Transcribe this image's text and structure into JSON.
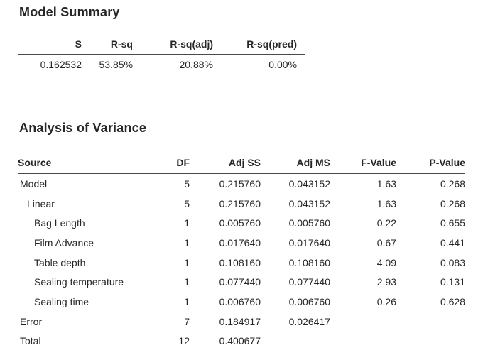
{
  "colors": {
    "heading_blue": "#1B6EC2",
    "body_text": "#262626",
    "rule": "#4a4a4a",
    "background": "#ffffff"
  },
  "model_summary": {
    "title": "Model Summary",
    "columns": [
      "S",
      "R-sq",
      "R-sq(adj)",
      "R-sq(pred)"
    ],
    "values": [
      "0.162532",
      "53.85%",
      "20.88%",
      "0.00%"
    ]
  },
  "anova": {
    "title": "Analysis of Variance",
    "columns": [
      "Source",
      "DF",
      "Adj SS",
      "Adj MS",
      "F-Value",
      "P-Value"
    ],
    "rows": [
      {
        "source": "Model",
        "indent": 0,
        "df": "5",
        "adj_ss": "0.215760",
        "adj_ms": "0.043152",
        "f_value": "1.63",
        "p_value": "0.268"
      },
      {
        "source": "Linear",
        "indent": 1,
        "df": "5",
        "adj_ss": "0.215760",
        "adj_ms": "0.043152",
        "f_value": "1.63",
        "p_value": "0.268"
      },
      {
        "source": "Bag Length",
        "indent": 2,
        "df": "1",
        "adj_ss": "0.005760",
        "adj_ms": "0.005760",
        "f_value": "0.22",
        "p_value": "0.655"
      },
      {
        "source": "Film Advance",
        "indent": 2,
        "df": "1",
        "adj_ss": "0.017640",
        "adj_ms": "0.017640",
        "f_value": "0.67",
        "p_value": "0.441"
      },
      {
        "source": "Table depth",
        "indent": 2,
        "df": "1",
        "adj_ss": "0.108160",
        "adj_ms": "0.108160",
        "f_value": "4.09",
        "p_value": "0.083"
      },
      {
        "source": "Sealing temperature",
        "indent": 2,
        "df": "1",
        "adj_ss": "0.077440",
        "adj_ms": "0.077440",
        "f_value": "2.93",
        "p_value": "0.131"
      },
      {
        "source": "Sealing time",
        "indent": 2,
        "df": "1",
        "adj_ss": "0.006760",
        "adj_ms": "0.006760",
        "f_value": "0.26",
        "p_value": "0.628"
      },
      {
        "source": "Error",
        "indent": 0,
        "df": "7",
        "adj_ss": "0.184917",
        "adj_ms": "0.026417",
        "f_value": "",
        "p_value": ""
      },
      {
        "source": "Total",
        "indent": 0,
        "df": "12",
        "adj_ss": "0.400677",
        "adj_ms": "",
        "f_value": "",
        "p_value": ""
      }
    ]
  }
}
